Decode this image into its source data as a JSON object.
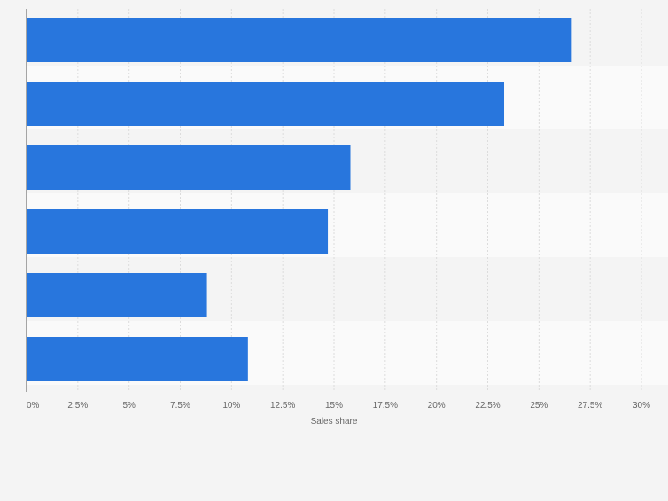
{
  "chart_data": {
    "type": "bar",
    "orientation": "horizontal",
    "categories": [
      "",
      "",
      "",
      "",
      "",
      ""
    ],
    "values": [
      26.6,
      23.3,
      15.8,
      14.7,
      8.8,
      10.8
    ],
    "x_ticks": [
      "0%",
      "2.5%",
      "5%",
      "7.5%",
      "10%",
      "12.5%",
      "15%",
      "17.5%",
      "20%",
      "22.5%",
      "25%",
      "27.5%",
      "30%"
    ],
    "xlim": [
      0,
      30
    ],
    "xlabel": "Sales share",
    "grid": true,
    "colors": {
      "bar": "#2876dd",
      "band_dark": "#f4f4f4",
      "band_light": "#fafafa",
      "grid": "#dcdcdc",
      "axis": "#555555",
      "tick_text": "#666666"
    }
  }
}
